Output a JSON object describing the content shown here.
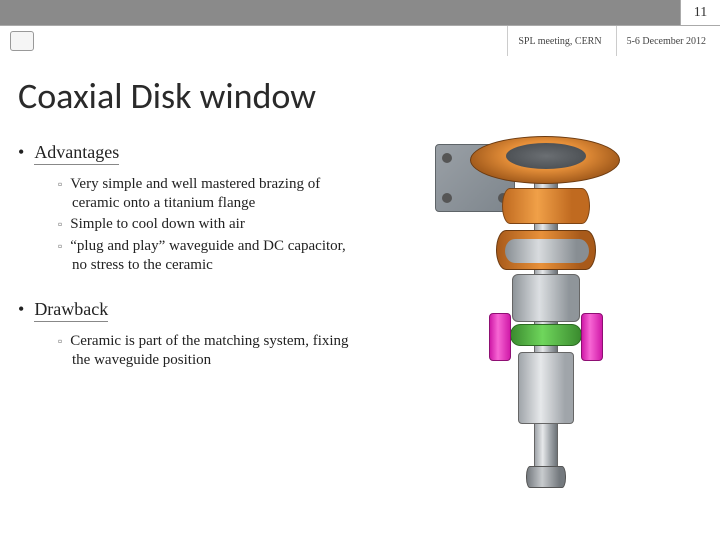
{
  "page_number": "11",
  "meta": {
    "meeting": "SPL meeting, CERN",
    "date": "5-6 December 2012"
  },
  "title": "Coaxial Disk window",
  "sections": [
    {
      "heading": "Advantages",
      "items": [
        "Very simple and well mastered brazing of ceramic onto a titanium flange",
        "Simple to cool down with air",
        "“plug and play” waveguide and DC capacitor, no stress to the ceramic"
      ]
    },
    {
      "heading": "Drawback",
      "items": [
        "Ceramic is part of the matching system, fixing the waveguide position"
      ]
    }
  ],
  "colors": {
    "bar": "#8a8a8a",
    "orange": "#e8913a",
    "green": "#6fd65c",
    "magenta": "#f766d4",
    "metal": "#a0a5aa"
  }
}
